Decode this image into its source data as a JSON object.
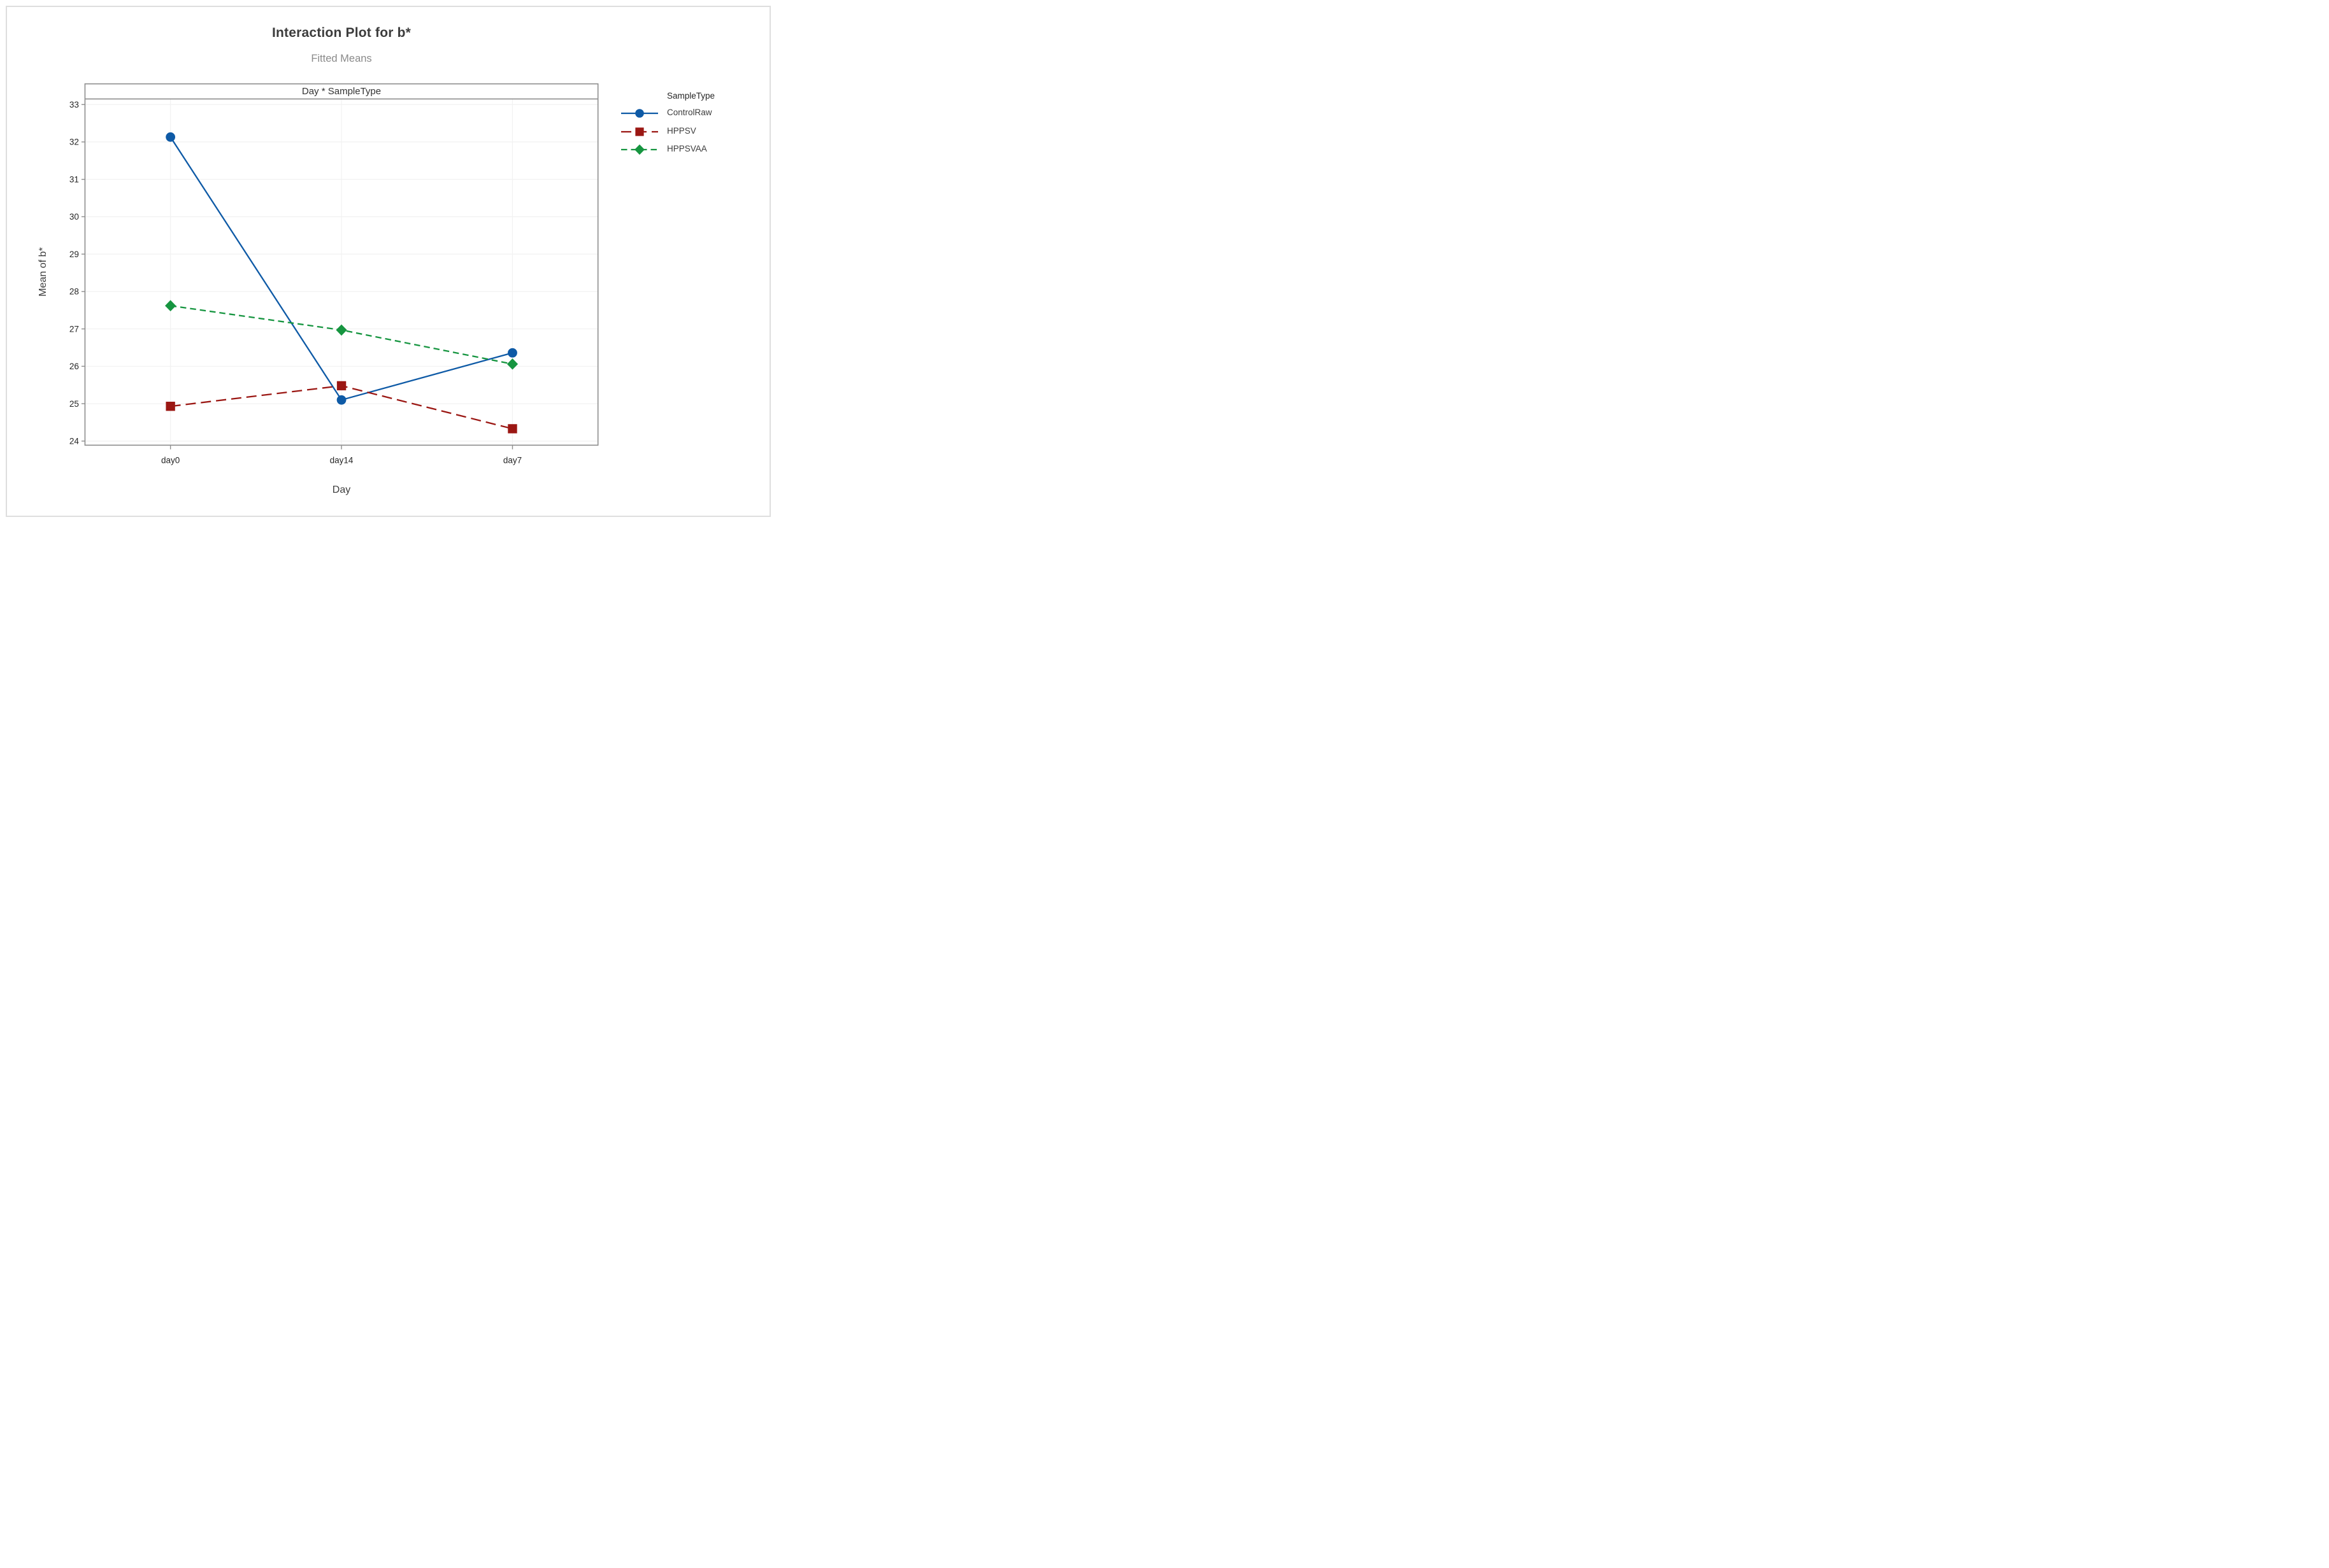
{
  "title": "Interaction Plot for b*",
  "subtitle": "Fitted Means",
  "panel_header": "Day * SampleType",
  "axes": {
    "x_label": "Day",
    "y_label": "Mean of b*"
  },
  "legend": {
    "title": "SampleType",
    "position": "right"
  },
  "colors": {
    "frame": "#8e8e8e",
    "grid": "#f2f2f2",
    "tick": "#8e8e8e",
    "tick_label": "#262626",
    "title": "#3c3c3c",
    "subtitle": "#8a8a8a",
    "outer_border": "#dedede",
    "background": "#ffffff",
    "series_blue": "#0e5aa6",
    "series_red": "#9b1713",
    "series_green": "#169540"
  },
  "chart_data": {
    "type": "line",
    "title": "Interaction Plot for b*",
    "subtitle": "Fitted Means",
    "panel_label": "Day * SampleType",
    "xlabel": "Day",
    "ylabel": "Mean of b*",
    "categories": [
      "day0",
      "day14",
      "day7"
    ],
    "series": [
      {
        "name": "ControlRaw",
        "values": [
          32.13,
          25.1,
          26.36
        ],
        "color": "#0e5aa6",
        "marker": "circle",
        "dash": "solid"
      },
      {
        "name": "HPPSV",
        "values": [
          24.93,
          25.48,
          24.33
        ],
        "color": "#9b1713",
        "marker": "square",
        "dash": "long-dash"
      },
      {
        "name": "HPPSVAA",
        "values": [
          27.62,
          26.97,
          26.06
        ],
        "color": "#169540",
        "marker": "diamond",
        "dash": "dash"
      }
    ],
    "yticks": [
      24,
      25,
      26,
      27,
      28,
      29,
      30,
      31,
      32,
      33
    ],
    "ylim": [
      23.89,
      33.15
    ],
    "grid": true,
    "legend_position": "right"
  }
}
